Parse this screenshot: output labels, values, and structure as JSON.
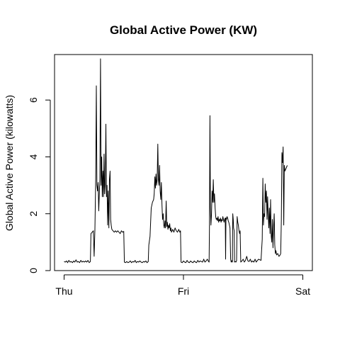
{
  "chart_data": {
    "type": "line",
    "title": "Global Active Power (KW)",
    "xlabel": "",
    "ylabel": "Global Active Power (kilowatts)",
    "x_tick_labels": [
      "Thu",
      "Fri",
      "Sat"
    ],
    "x_tick_values": [
      0,
      1,
      2
    ],
    "x_unit": "days from Thu 00:00",
    "y_ticks": [
      0,
      2,
      4,
      6
    ],
    "xlim": [
      -0.08,
      2.08
    ],
    "ylim": [
      0,
      7.6
    ],
    "grid": false,
    "line_color": "#000000",
    "series": [
      {
        "values": [
          [
            0.0,
            0.32
          ],
          [
            0.01,
            0.3
          ],
          [
            0.02,
            0.34
          ],
          [
            0.03,
            0.28
          ],
          [
            0.04,
            0.36
          ],
          [
            0.05,
            0.3
          ],
          [
            0.06,
            0.32
          ],
          [
            0.07,
            0.28
          ],
          [
            0.08,
            0.34
          ],
          [
            0.09,
            0.3
          ],
          [
            0.1,
            0.38
          ],
          [
            0.11,
            0.3
          ],
          [
            0.12,
            0.32
          ],
          [
            0.13,
            0.28
          ],
          [
            0.14,
            0.36
          ],
          [
            0.15,
            0.3
          ],
          [
            0.16,
            0.33
          ],
          [
            0.17,
            0.3
          ],
          [
            0.18,
            0.34
          ],
          [
            0.19,
            0.3
          ],
          [
            0.2,
            0.36
          ],
          [
            0.21,
            0.28
          ],
          [
            0.22,
            0.32
          ],
          [
            0.225,
            1.3
          ],
          [
            0.235,
            1.35
          ],
          [
            0.245,
            1.4
          ],
          [
            0.252,
            0.5
          ],
          [
            0.258,
            1.45
          ],
          [
            0.265,
            3.2
          ],
          [
            0.27,
            6.5
          ],
          [
            0.275,
            3.0
          ],
          [
            0.28,
            2.8
          ],
          [
            0.285,
            3.1
          ],
          [
            0.29,
            2.1
          ],
          [
            0.295,
            2.7
          ],
          [
            0.3,
            3.2
          ],
          [
            0.305,
            7.45
          ],
          [
            0.31,
            3.0
          ],
          [
            0.315,
            4.0
          ],
          [
            0.32,
            2.6
          ],
          [
            0.325,
            3.5
          ],
          [
            0.33,
            2.6
          ],
          [
            0.335,
            4.1
          ],
          [
            0.34,
            2.7
          ],
          [
            0.345,
            3.0
          ],
          [
            0.35,
            5.15
          ],
          [
            0.355,
            2.6
          ],
          [
            0.36,
            3.0
          ],
          [
            0.365,
            1.6
          ],
          [
            0.37,
            2.8
          ],
          [
            0.375,
            1.5
          ],
          [
            0.38,
            3.2
          ],
          [
            0.385,
            3.5
          ],
          [
            0.39,
            1.8
          ],
          [
            0.395,
            1.6
          ],
          [
            0.4,
            1.45
          ],
          [
            0.41,
            1.4
          ],
          [
            0.42,
            1.35
          ],
          [
            0.43,
            1.4
          ],
          [
            0.44,
            1.35
          ],
          [
            0.45,
            1.4
          ],
          [
            0.46,
            1.35
          ],
          [
            0.47,
            1.3
          ],
          [
            0.48,
            1.4
          ],
          [
            0.49,
            1.35
          ],
          [
            0.5,
            1.38
          ],
          [
            0.505,
            0.3
          ],
          [
            0.515,
            0.28
          ],
          [
            0.525,
            0.32
          ],
          [
            0.535,
            0.28
          ],
          [
            0.545,
            0.3
          ],
          [
            0.555,
            0.34
          ],
          [
            0.565,
            0.28
          ],
          [
            0.575,
            0.32
          ],
          [
            0.585,
            0.3
          ],
          [
            0.595,
            0.36
          ],
          [
            0.605,
            0.28
          ],
          [
            0.615,
            0.32
          ],
          [
            0.625,
            0.3
          ],
          [
            0.635,
            0.34
          ],
          [
            0.645,
            0.3
          ],
          [
            0.655,
            0.28
          ],
          [
            0.665,
            0.32
          ],
          [
            0.675,
            0.3
          ],
          [
            0.685,
            0.34
          ],
          [
            0.695,
            0.28
          ],
          [
            0.705,
            0.32
          ],
          [
            0.71,
            0.9
          ],
          [
            0.72,
            1.2
          ],
          [
            0.73,
            2.2
          ],
          [
            0.74,
            2.4
          ],
          [
            0.75,
            2.5
          ],
          [
            0.755,
            2.7
          ],
          [
            0.76,
            3.3
          ],
          [
            0.765,
            2.9
          ],
          [
            0.77,
            3.4
          ],
          [
            0.775,
            3.0
          ],
          [
            0.78,
            3.2
          ],
          [
            0.785,
            4.45
          ],
          [
            0.79,
            3.2
          ],
          [
            0.795,
            3.0
          ],
          [
            0.8,
            3.7
          ],
          [
            0.805,
            2.8
          ],
          [
            0.81,
            2.5
          ],
          [
            0.815,
            3.1
          ],
          [
            0.82,
            2.3
          ],
          [
            0.825,
            1.8
          ],
          [
            0.83,
            2.0
          ],
          [
            0.835,
            1.6
          ],
          [
            0.84,
            1.5
          ],
          [
            0.845,
            1.75
          ],
          [
            0.85,
            1.5
          ],
          [
            0.855,
            2.45
          ],
          [
            0.86,
            1.55
          ],
          [
            0.865,
            1.7
          ],
          [
            0.87,
            1.45
          ],
          [
            0.875,
            1.6
          ],
          [
            0.88,
            1.5
          ],
          [
            0.885,
            1.65
          ],
          [
            0.89,
            1.4
          ],
          [
            0.895,
            1.5
          ],
          [
            0.9,
            1.35
          ],
          [
            0.91,
            1.45
          ],
          [
            0.92,
            1.35
          ],
          [
            0.93,
            1.5
          ],
          [
            0.94,
            1.4
          ],
          [
            0.95,
            1.35
          ],
          [
            0.96,
            1.45
          ],
          [
            0.965,
            1.4
          ],
          [
            0.97,
            1.35
          ],
          [
            0.975,
            1.4
          ],
          [
            0.98,
            0.3
          ],
          [
            0.99,
            0.28
          ],
          [
            1.0,
            0.34
          ],
          [
            1.01,
            0.3
          ],
          [
            1.02,
            0.28
          ],
          [
            1.03,
            0.36
          ],
          [
            1.04,
            0.3
          ],
          [
            1.05,
            0.28
          ],
          [
            1.06,
            0.34
          ],
          [
            1.07,
            0.3
          ],
          [
            1.08,
            0.28
          ],
          [
            1.09,
            0.34
          ],
          [
            1.1,
            0.3
          ],
          [
            1.11,
            0.28
          ],
          [
            1.12,
            0.36
          ],
          [
            1.13,
            0.3
          ],
          [
            1.14,
            0.34
          ],
          [
            1.15,
            0.32
          ],
          [
            1.16,
            0.3
          ],
          [
            1.17,
            0.4
          ],
          [
            1.18,
            0.3
          ],
          [
            1.19,
            0.34
          ],
          [
            1.2,
            0.4
          ],
          [
            1.21,
            0.32
          ],
          [
            1.215,
            0.3
          ],
          [
            1.218,
            1.5
          ],
          [
            1.222,
            5.45
          ],
          [
            1.226,
            2.2
          ],
          [
            1.23,
            1.6
          ],
          [
            1.235,
            2.0
          ],
          [
            1.24,
            2.8
          ],
          [
            1.245,
            2.4
          ],
          [
            1.25,
            3.2
          ],
          [
            1.255,
            2.4
          ],
          [
            1.26,
            2.7
          ],
          [
            1.265,
            2.2
          ],
          [
            1.27,
            1.9
          ],
          [
            1.275,
            1.8
          ],
          [
            1.28,
            1.85
          ],
          [
            1.285,
            1.75
          ],
          [
            1.29,
            1.9
          ],
          [
            1.295,
            1.7
          ],
          [
            1.3,
            1.8
          ],
          [
            1.305,
            1.75
          ],
          [
            1.31,
            1.85
          ],
          [
            1.315,
            1.7
          ],
          [
            1.32,
            1.8
          ],
          [
            1.325,
            1.75
          ],
          [
            1.33,
            1.9
          ],
          [
            1.335,
            1.8
          ],
          [
            1.34,
            1.7
          ],
          [
            1.345,
            1.8
          ],
          [
            1.35,
            1.85
          ],
          [
            1.353,
            0.4
          ],
          [
            1.356,
            1.85
          ],
          [
            1.36,
            1.8
          ],
          [
            1.365,
            1.9
          ],
          [
            1.37,
            1.85
          ],
          [
            1.375,
            1.75
          ],
          [
            1.38,
            1.7
          ],
          [
            1.385,
            1.6
          ],
          [
            1.39,
            1.5
          ],
          [
            1.395,
            0.4
          ],
          [
            1.4,
            0.3
          ],
          [
            1.405,
            0.35
          ],
          [
            1.41,
            0.3
          ],
          [
            1.413,
            2.0
          ],
          [
            1.417,
            1.8
          ],
          [
            1.42,
            1.5
          ],
          [
            1.425,
            1.4
          ],
          [
            1.428,
            0.3
          ],
          [
            1.435,
            0.32
          ],
          [
            1.44,
            0.3
          ],
          [
            1.445,
            0.35
          ],
          [
            1.45,
            1.9
          ],
          [
            1.455,
            1.7
          ],
          [
            1.46,
            1.6
          ],
          [
            1.465,
            1.4
          ],
          [
            1.47,
            1.3
          ],
          [
            1.475,
            1.4
          ],
          [
            1.48,
            0.3
          ],
          [
            1.49,
            0.34
          ],
          [
            1.5,
            0.4
          ],
          [
            1.51,
            0.3
          ],
          [
            1.52,
            0.36
          ],
          [
            1.53,
            0.5
          ],
          [
            1.54,
            0.34
          ],
          [
            1.55,
            0.32
          ],
          [
            1.56,
            0.4
          ],
          [
            1.57,
            0.3
          ],
          [
            1.58,
            0.34
          ],
          [
            1.59,
            0.3
          ],
          [
            1.6,
            0.4
          ],
          [
            1.61,
            0.3
          ],
          [
            1.62,
            0.36
          ],
          [
            1.63,
            0.4
          ],
          [
            1.64,
            0.38
          ],
          [
            1.65,
            0.36
          ],
          [
            1.66,
            1.1
          ],
          [
            1.665,
            3.25
          ],
          [
            1.67,
            1.6
          ],
          [
            1.675,
            2.0
          ],
          [
            1.68,
            1.9
          ],
          [
            1.685,
            3.05
          ],
          [
            1.69,
            2.4
          ],
          [
            1.695,
            2.8
          ],
          [
            1.7,
            1.8
          ],
          [
            1.705,
            2.6
          ],
          [
            1.71,
            2.0
          ],
          [
            1.715,
            1.5
          ],
          [
            1.72,
            2.2
          ],
          [
            1.725,
            1.3
          ],
          [
            1.73,
            2.5
          ],
          [
            1.735,
            1.2
          ],
          [
            1.74,
            1.0
          ],
          [
            1.745,
            1.8
          ],
          [
            1.75,
            0.8
          ],
          [
            1.755,
            1.5
          ],
          [
            1.76,
            2.0
          ],
          [
            1.765,
            0.9
          ],
          [
            1.77,
            0.6
          ],
          [
            1.775,
            0.7
          ],
          [
            1.78,
            0.55
          ],
          [
            1.79,
            0.6
          ],
          [
            1.8,
            0.5
          ],
          [
            1.81,
            0.55
          ],
          [
            1.815,
            0.6
          ],
          [
            1.82,
            1.8
          ],
          [
            1.825,
            4.15
          ],
          [
            1.83,
            3.8
          ],
          [
            1.835,
            4.35
          ],
          [
            1.84,
            1.6
          ],
          [
            1.845,
            3.7
          ],
          [
            1.85,
            3.5
          ],
          [
            1.86,
            3.6
          ],
          [
            1.87,
            3.7
          ]
        ]
      }
    ]
  }
}
